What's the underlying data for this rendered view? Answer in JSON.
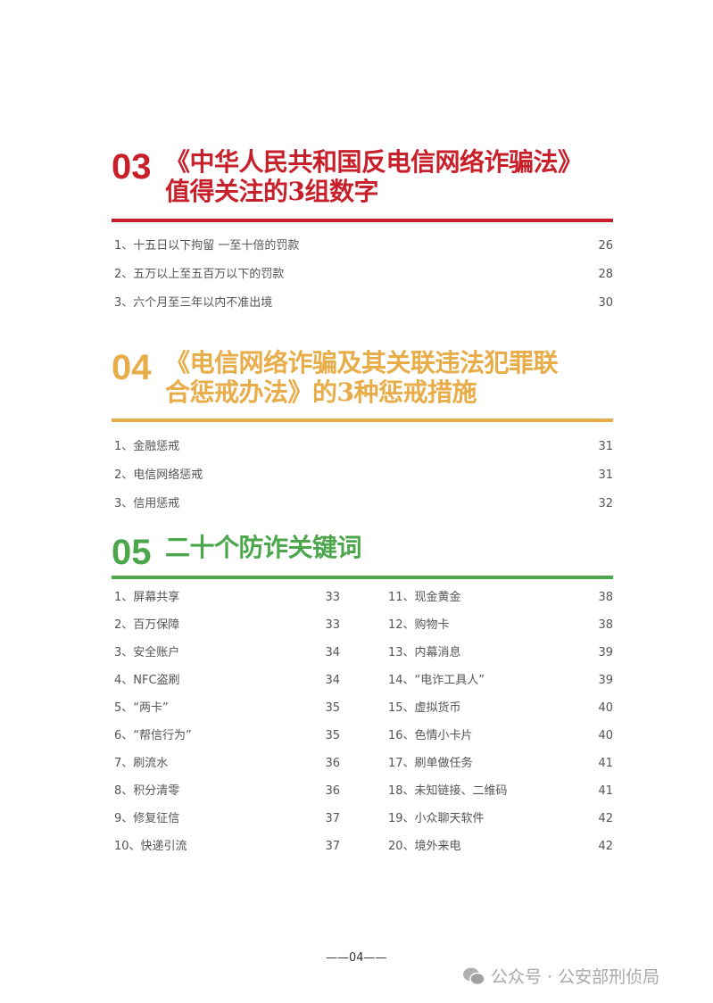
{
  "colors": {
    "s03": "#c8202a",
    "s04": "#e8ac48",
    "s05": "#4ca64c"
  },
  "sections": [
    {
      "number": "03",
      "title_lines": [
        "《中华人民共和国反电信网络诈骗法》",
        "值得关注的3组数字"
      ],
      "items": [
        {
          "label": "1、十五日以下拘留 一至十倍的罚款",
          "page": "26"
        },
        {
          "label": "2、五万以上至五百万以下的罚款",
          "page": "28"
        },
        {
          "label": "3、六个月至三年以内不准出境",
          "page": "30"
        }
      ]
    },
    {
      "number": "04",
      "title_lines": [
        "《电信网络诈骗及其关联违法犯罪联",
        "合惩戒办法》的3种惩戒措施"
      ],
      "items": [
        {
          "label": "1、金融惩戒",
          "page": "31"
        },
        {
          "label": "2、电信网络惩戒",
          "page": "31"
        },
        {
          "label": "3、信用惩戒",
          "page": "32"
        }
      ]
    },
    {
      "number": "05",
      "title_lines": [
        "二十个防诈关键词"
      ],
      "items": [
        {
          "label": "1、屏幕共享",
          "page": "33"
        },
        {
          "label": "2、百万保障",
          "page": "33"
        },
        {
          "label": "3、安全账户",
          "page": "34"
        },
        {
          "label": "4、NFC盗刷",
          "page": "34"
        },
        {
          "label": "5、“两卡”",
          "page": "35"
        },
        {
          "label": "6、“帮信行为”",
          "page": "35"
        },
        {
          "label": "7、刷流水",
          "page": "36"
        },
        {
          "label": "8、积分清零",
          "page": "36"
        },
        {
          "label": "9、修复征信",
          "page": "37"
        },
        {
          "label": "10、快递引流",
          "page": "37"
        },
        {
          "label": "11、现金黄金",
          "page": "38"
        },
        {
          "label": "12、购物卡",
          "page": "38"
        },
        {
          "label": "13、内幕消息",
          "page": "39"
        },
        {
          "label": "14、“电诈工具人”",
          "page": "39"
        },
        {
          "label": "15、虚拟货币",
          "page": "40"
        },
        {
          "label": "16、色情小卡片",
          "page": "40"
        },
        {
          "label": "17、刷单做任务",
          "page": "41"
        },
        {
          "label": "18、未知链接、二维码",
          "page": "41"
        },
        {
          "label": "19、小众聊天软件",
          "page": "42"
        },
        {
          "label": "20、境外来电",
          "page": "42"
        }
      ]
    }
  ],
  "footer": {
    "page_number": "——04——",
    "watermark": "公众号 · 公安部刑侦局",
    "watermark_icon": "wechat-icon"
  }
}
